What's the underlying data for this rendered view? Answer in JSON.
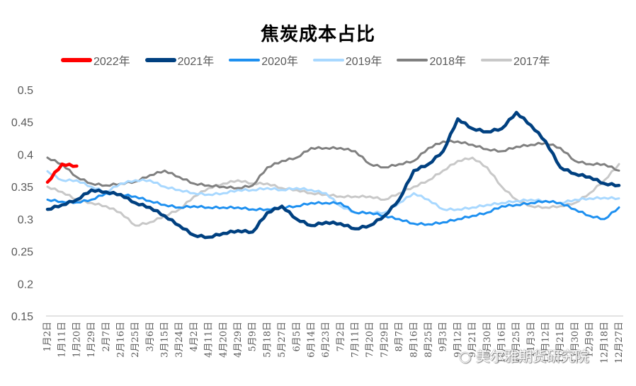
{
  "chart_data": {
    "type": "line",
    "title": "焦炭成本占比",
    "xlabel": "",
    "ylabel": "",
    "ylim": [
      0.15,
      0.5
    ],
    "yticks": [
      0.5,
      0.45,
      0.4,
      0.35,
      0.3,
      0.25,
      0.2,
      0.15
    ],
    "ytick_labels": [
      "0.5",
      "0.45",
      "0.4",
      "0.35",
      "0.3",
      "0.25",
      "0.2",
      "0.15"
    ],
    "grid": false,
    "legend_position": "top",
    "categories": [
      "1月2日",
      "1月11日",
      "1月20日",
      "1月29日",
      "2月7日",
      "2月16日",
      "2月25日",
      "3月6日",
      "3月15日",
      "3月24日",
      "4月2日",
      "4月11日",
      "4月20日",
      "4月29日",
      "5月9日",
      "5月18日",
      "5月27日",
      "6月5日",
      "6月14日",
      "6月23日",
      "7月2日",
      "7月11日",
      "7月20日",
      "7月29日",
      "8月7日",
      "8月16日",
      "8月25日",
      "9月3日",
      "9月12日",
      "9月21日",
      "9月30日",
      "10月16日",
      "10月25日",
      "11月3日",
      "11月12日",
      "11月21日",
      "11月30日",
      "12月9日",
      "12月18日",
      "12月27日"
    ],
    "series": [
      {
        "name": "2022年",
        "color": "#FF0000",
        "width": 4.5,
        "values": [
          0.357,
          0.385,
          0.382
        ]
      },
      {
        "name": "2021年",
        "color": "#004080",
        "width": 4.5,
        "values": [
          0.315,
          0.322,
          0.33,
          0.345,
          0.342,
          0.338,
          0.325,
          0.318,
          0.305,
          0.29,
          0.275,
          0.272,
          0.278,
          0.282,
          0.28,
          0.31,
          0.32,
          0.3,
          0.29,
          0.295,
          0.293,
          0.285,
          0.29,
          0.305,
          0.33,
          0.375,
          0.385,
          0.405,
          0.455,
          0.44,
          0.435,
          0.44,
          0.465,
          0.445,
          0.42,
          0.38,
          0.37,
          0.365,
          0.355,
          0.352
        ]
      },
      {
        "name": "2020年",
        "color": "#1E90F0",
        "width": 3,
        "values": [
          0.33,
          0.327,
          0.326,
          0.33,
          0.34,
          0.338,
          0.335,
          0.328,
          0.322,
          0.318,
          0.32,
          0.318,
          0.318,
          0.318,
          0.315,
          0.315,
          0.318,
          0.32,
          0.325,
          0.325,
          0.325,
          0.31,
          0.31,
          0.305,
          0.3,
          0.293,
          0.292,
          0.295,
          0.3,
          0.305,
          0.31,
          0.32,
          0.322,
          0.325,
          0.328,
          0.325,
          0.315,
          0.305,
          0.3,
          0.318
        ]
      },
      {
        "name": "2019年",
        "color": "#A8D8FF",
        "width": 3,
        "values": [
          0.374,
          0.36,
          0.36,
          0.35,
          0.342,
          0.355,
          0.36,
          0.36,
          0.35,
          0.345,
          0.34,
          0.338,
          0.34,
          0.345,
          0.345,
          0.348,
          0.345,
          0.348,
          0.345,
          0.34,
          0.32,
          0.31,
          0.31,
          0.31,
          0.325,
          0.34,
          0.33,
          0.315,
          0.315,
          0.318,
          0.322,
          0.325,
          0.328,
          0.33,
          0.328,
          0.325,
          0.33,
          0.332,
          0.333,
          0.332
        ]
      },
      {
        "name": "2018年",
        "color": "#808080",
        "width": 3,
        "values": [
          0.395,
          0.385,
          0.365,
          0.355,
          0.352,
          0.355,
          0.358,
          0.368,
          0.375,
          0.365,
          0.355,
          0.352,
          0.35,
          0.348,
          0.352,
          0.38,
          0.39,
          0.395,
          0.41,
          0.41,
          0.41,
          0.405,
          0.385,
          0.38,
          0.385,
          0.39,
          0.41,
          0.42,
          0.42,
          0.415,
          0.408,
          0.405,
          0.412,
          0.415,
          0.418,
          0.41,
          0.39,
          0.385,
          0.385,
          0.375
        ]
      },
      {
        "name": "2017年",
        "color": "#C8C8C8",
        "width": 3,
        "values": [
          0.35,
          0.342,
          0.33,
          0.325,
          0.32,
          0.31,
          0.29,
          0.295,
          0.305,
          0.315,
          0.335,
          0.348,
          0.355,
          0.36,
          0.355,
          0.355,
          0.348,
          0.345,
          0.34,
          0.338,
          0.335,
          0.335,
          0.335,
          0.33,
          0.34,
          0.35,
          0.36,
          0.375,
          0.39,
          0.395,
          0.38,
          0.35,
          0.33,
          0.32,
          0.318,
          0.32,
          0.325,
          0.34,
          0.36,
          0.385
        ]
      }
    ]
  },
  "watermark": {
    "text": "美尔雅期货研究院",
    "icon": "wechat-icon"
  }
}
